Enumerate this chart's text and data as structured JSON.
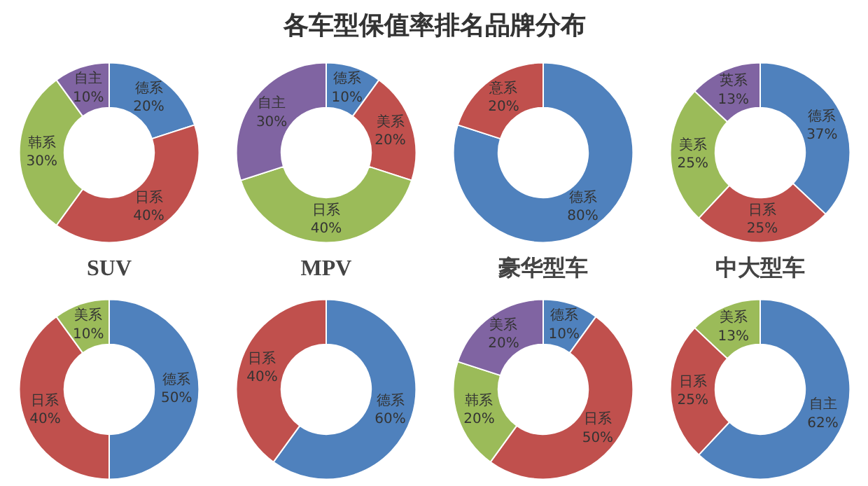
{
  "chart_data": [
    {
      "type": "other",
      "title": "各车型保值率排名品牌分布"
    },
    {
      "type": "donut",
      "title": "SUV",
      "categories": [
        "德系",
        "日系",
        "韩系",
        "自主"
      ],
      "values": [
        20,
        40,
        30,
        10
      ],
      "value_labels": [
        "20%",
        "40%",
        "30%",
        "10%"
      ],
      "colors": [
        "#4f81bd",
        "#c0504d",
        "#9bbb59",
        "#8064a2"
      ]
    },
    {
      "type": "donut",
      "title": "MPV",
      "categories": [
        "德系",
        "美系",
        "日系",
        "自主"
      ],
      "values": [
        10,
        20,
        40,
        30
      ],
      "value_labels": [
        "10%",
        "20%",
        "40%",
        "30%"
      ],
      "colors": [
        "#4f81bd",
        "#c0504d",
        "#9bbb59",
        "#8064a2"
      ]
    },
    {
      "type": "donut",
      "title": "豪华型车",
      "categories": [
        "德系",
        "意系"
      ],
      "values": [
        80,
        20
      ],
      "value_labels": [
        "80%",
        "20%"
      ],
      "colors": [
        "#4f81bd",
        "#c0504d"
      ]
    },
    {
      "type": "donut",
      "title": "中大型车",
      "categories": [
        "德系",
        "日系",
        "美系",
        "英系"
      ],
      "values": [
        37,
        25,
        25,
        13
      ],
      "value_labels": [
        "37%",
        "25%",
        "25%",
        "13%"
      ],
      "colors": [
        "#4f81bd",
        "#c0504d",
        "#9bbb59",
        "#8064a2"
      ]
    },
    {
      "type": "donut",
      "categories": [
        "德系",
        "日系",
        "美系"
      ],
      "values": [
        50,
        40,
        10
      ],
      "value_labels": [
        "50%",
        "40%",
        "10%"
      ],
      "colors": [
        "#4f81bd",
        "#c0504d",
        "#9bbb59"
      ]
    },
    {
      "type": "donut",
      "categories": [
        "德系",
        "日系"
      ],
      "values": [
        60,
        40
      ],
      "value_labels": [
        "60%",
        "40%"
      ],
      "colors": [
        "#4f81bd",
        "#c0504d"
      ]
    },
    {
      "type": "donut",
      "categories": [
        "德系",
        "日系",
        "韩系",
        "美系"
      ],
      "values": [
        10,
        50,
        20,
        20
      ],
      "value_labels": [
        "10%",
        "50%",
        "20%",
        "20%"
      ],
      "colors": [
        "#4f81bd",
        "#c0504d",
        "#9bbb59",
        "#8064a2"
      ]
    },
    {
      "type": "donut",
      "categories": [
        "自主",
        "日系",
        "美系"
      ],
      "values": [
        62,
        25,
        13
      ],
      "value_labels": [
        "62%",
        "25%",
        "13%"
      ],
      "colors": [
        "#4f81bd",
        "#c0504d",
        "#9bbb59"
      ]
    }
  ]
}
